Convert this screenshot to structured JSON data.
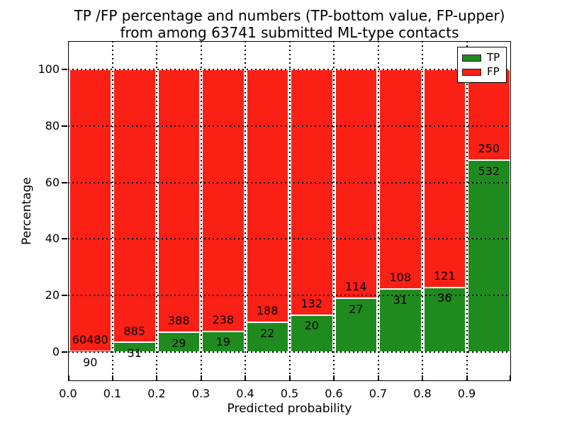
{
  "title": {
    "line1": "TP /FP percentage and numbers (TP-bottom value, FP-upper)",
    "line2": "from among 63741 submitted ML-type contacts"
  },
  "axes": {
    "xlabel": "Predicted probability",
    "ylabel": "Percentage",
    "xtick_labels": [
      "0.0",
      "0.1",
      "0.2",
      "0.3",
      "0.4",
      "0.5",
      "0.6",
      "0.7",
      "0.8",
      "0.9"
    ],
    "ytick_values": [
      0,
      20,
      40,
      60,
      80,
      100
    ]
  },
  "legend": {
    "items": [
      {
        "label": "TP",
        "color": "#1f8b1f"
      },
      {
        "label": "FP",
        "color": "#fa2015"
      }
    ]
  },
  "colors": {
    "tp": "#1f8b1f",
    "fp": "#fa2015",
    "grid": "#000000",
    "bar_edge": "#ffffff"
  },
  "chart_data": {
    "type": "bar",
    "stacked": true,
    "normalized": "each bin stacked to 100%",
    "title": "TP /FP percentage and numbers (TP-bottom value, FP-upper) from among 63741 submitted ML-type contacts",
    "xlabel": "Predicted probability",
    "ylabel": "Percentage",
    "bin_starts": [
      0.0,
      0.1,
      0.2,
      0.3,
      0.4,
      0.5,
      0.6,
      0.7,
      0.8,
      0.9
    ],
    "bin_width": 0.1,
    "series": [
      {
        "name": "TP",
        "color": "#1f8b1f",
        "counts": [
          90,
          31,
          29,
          19,
          22,
          20,
          27,
          31,
          36,
          532
        ]
      },
      {
        "name": "FP",
        "color": "#fa2015",
        "counts": [
          60480,
          885,
          388,
          238,
          188,
          132,
          114,
          108,
          121,
          250
        ]
      }
    ],
    "tp_percent_of_bin": [
      0.15,
      3.38,
      6.95,
      7.39,
      10.48,
      13.16,
      19.15,
      22.3,
      22.93,
      68.03
    ],
    "total_submitted": 63741,
    "xlim": [
      0.0,
      1.0
    ],
    "ylim": [
      -10.4,
      110
    ],
    "grid": true,
    "legend_position": "upper right"
  }
}
